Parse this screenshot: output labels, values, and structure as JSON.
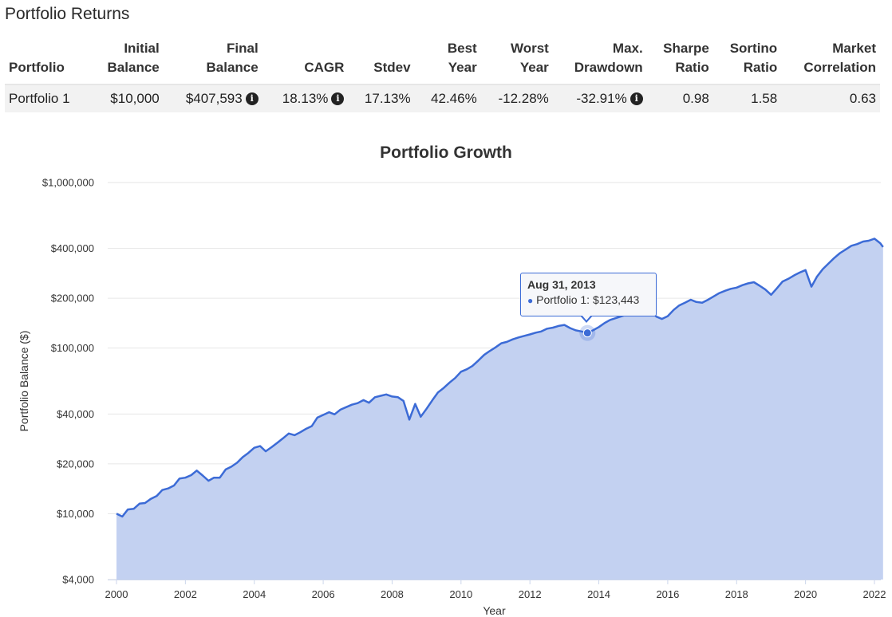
{
  "section_title": "Portfolio Returns",
  "table": {
    "headers": [
      {
        "line1": "",
        "line2": "Portfolio"
      },
      {
        "line1": "Initial",
        "line2": "Balance"
      },
      {
        "line1": "Final",
        "line2": "Balance"
      },
      {
        "line1": "",
        "line2": "CAGR"
      },
      {
        "line1": "",
        "line2": "Stdev"
      },
      {
        "line1": "Best",
        "line2": "Year"
      },
      {
        "line1": "Worst",
        "line2": "Year"
      },
      {
        "line1": "Max.",
        "line2": "Drawdown"
      },
      {
        "line1": "Sharpe",
        "line2": "Ratio"
      },
      {
        "line1": "Sortino",
        "line2": "Ratio"
      },
      {
        "line1": "Market",
        "line2": "Correlation"
      }
    ],
    "rows": [
      {
        "portfolio": "Portfolio 1",
        "initial_balance": "$10,000",
        "final_balance": "$407,593",
        "cagr": "18.13%",
        "stdev": "17.13%",
        "best_year": "42.46%",
        "worst_year": "-12.28%",
        "max_drawdown": "-32.91%",
        "sharpe": "0.98",
        "sortino": "1.58",
        "market_correlation": "0.63"
      }
    ],
    "info_icon": "info-circle-icon"
  },
  "tooltip": {
    "date": "Aug 31, 2013",
    "text": "Portfolio 1: $123,443",
    "x": 2013.67,
    "y": 123443
  },
  "colors": {
    "line": "#3c6bd6",
    "area": "#c3d1f1",
    "grid": "#e6e6e6"
  },
  "chart_data": {
    "type": "area",
    "title": "Portfolio Growth",
    "xlabel": "Year",
    "ylabel": "Portfolio Balance ($)",
    "yscale": "log",
    "ylim": [
      4000,
      1000000
    ],
    "xlim": [
      1999.6,
      2022.4
    ],
    "y_ticks": [
      4000,
      10000,
      20000,
      40000,
      100000,
      200000,
      400000,
      1000000
    ],
    "y_tick_labels": [
      "$4,000",
      "$10,000",
      "$20,000",
      "$40,000",
      "$100,000",
      "$200,000",
      "$400,000",
      "$1,000,000"
    ],
    "x_ticks": [
      2000,
      2002,
      2004,
      2006,
      2008,
      2010,
      2012,
      2014,
      2016,
      2018,
      2020,
      2022
    ],
    "x_tick_labels": [
      "2000",
      "2002",
      "2004",
      "2006",
      "2008",
      "2010",
      "2012",
      "2014",
      "2016",
      "2018",
      "2020",
      "2022"
    ],
    "grid": true,
    "legend": "none",
    "series": [
      {
        "x": [
          2000.0,
          2000.17,
          2000.33,
          2000.5,
          2000.67,
          2000.83,
          2001.0,
          2001.17,
          2001.33,
          2001.5,
          2001.67,
          2001.83,
          2002.0,
          2002.17,
          2002.33,
          2002.5,
          2002.67,
          2002.83,
          2003.0,
          2003.17,
          2003.33,
          2003.5,
          2003.67,
          2003.83,
          2004.0,
          2004.17,
          2004.33,
          2004.5,
          2004.67,
          2004.83,
          2005.0,
          2005.17,
          2005.33,
          2005.5,
          2005.67,
          2005.83,
          2006.0,
          2006.17,
          2006.33,
          2006.5,
          2006.67,
          2006.83,
          2007.0,
          2007.17,
          2007.33,
          2007.5,
          2007.67,
          2007.83,
          2008.0,
          2008.17,
          2008.33,
          2008.5,
          2008.67,
          2008.83,
          2009.0,
          2009.17,
          2009.33,
          2009.5,
          2009.67,
          2009.83,
          2010.0,
          2010.17,
          2010.33,
          2010.5,
          2010.67,
          2010.83,
          2011.0,
          2011.17,
          2011.33,
          2011.5,
          2011.67,
          2011.83,
          2012.0,
          2012.17,
          2012.33,
          2012.5,
          2012.67,
          2012.83,
          2013.0,
          2013.17,
          2013.33,
          2013.5,
          2013.67,
          2013.83,
          2014.0,
          2014.17,
          2014.33,
          2014.5,
          2014.67,
          2014.83,
          2015.0,
          2015.17,
          2015.33,
          2015.5,
          2015.67,
          2015.83,
          2016.0,
          2016.17,
          2016.33,
          2016.5,
          2016.67,
          2016.83,
          2017.0,
          2017.17,
          2017.33,
          2017.5,
          2017.67,
          2017.83,
          2018.0,
          2018.17,
          2018.33,
          2018.5,
          2018.67,
          2018.83,
          2019.0,
          2019.17,
          2019.33,
          2019.5,
          2019.67,
          2019.83,
          2020.0,
          2020.17,
          2020.33,
          2020.5,
          2020.67,
          2020.83,
          2021.0,
          2021.17,
          2021.33,
          2021.5,
          2021.67,
          2021.83,
          2022.0,
          2022.17,
          2022.25
        ],
        "y": [
          10000,
          9600,
          10600,
          10700,
          11500,
          11600,
          12300,
          12800,
          13900,
          14200,
          14800,
          16300,
          16500,
          17100,
          18200,
          17000,
          15800,
          16500,
          16500,
          18500,
          19200,
          20300,
          22000,
          23300,
          25000,
          25600,
          23800,
          25200,
          26800,
          28500,
          30500,
          29800,
          31000,
          32500,
          33800,
          38000,
          39500,
          41000,
          39800,
          42500,
          44000,
          45500,
          46500,
          48500,
          46800,
          50500,
          51500,
          52500,
          51000,
          50500,
          48000,
          37000,
          46000,
          38500,
          43000,
          48500,
          54000,
          57500,
          62000,
          66000,
          72000,
          74500,
          78000,
          84000,
          91000,
          96000,
          101000,
          107000,
          109000,
          113000,
          116000,
          118500,
          121000,
          124000,
          126000,
          131000,
          133000,
          136000,
          138000,
          132000,
          128000,
          126000,
          123443,
          128000,
          134000,
          142000,
          148000,
          152000,
          156000,
          160000,
          163000,
          166000,
          168000,
          166000,
          155000,
          150000,
          156000,
          170000,
          181000,
          188000,
          196000,
          190000,
          188000,
          196000,
          205000,
          215000,
          222000,
          228000,
          232000,
          240000,
          246000,
          250000,
          238000,
          226000,
          210000,
          230000,
          252000,
          262000,
          275000,
          286000,
          296000,
          235000,
          270000,
          300000,
          325000,
          350000,
          375000,
          395000,
          415000,
          425000,
          440000,
          445000,
          458000,
          430000,
          407593
        ]
      }
    ]
  }
}
